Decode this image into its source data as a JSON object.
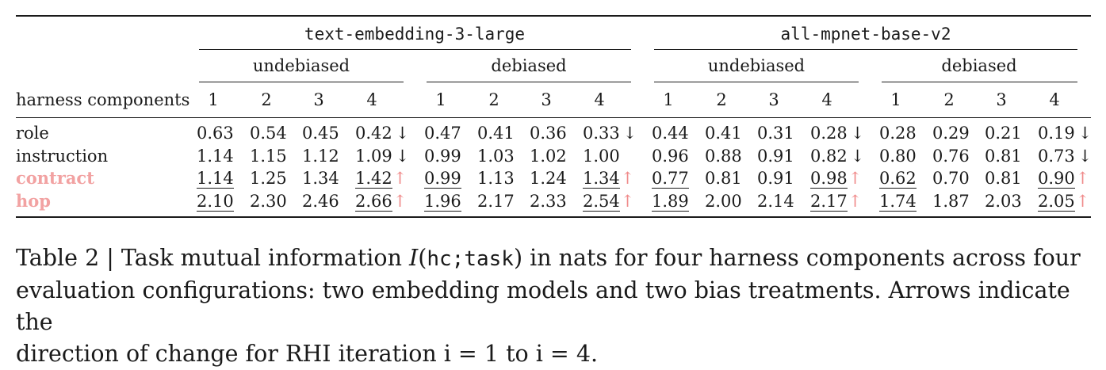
{
  "table": {
    "models": [
      "text-embedding-3-large",
      "all-mpnet-base-v2"
    ],
    "treatments": [
      "undebiased",
      "debiased",
      "undebiased",
      "debiased"
    ],
    "row_header": "harness components",
    "iterations": [
      "1",
      "2",
      "3",
      "4",
      "1",
      "2",
      "3",
      "4",
      "1",
      "2",
      "3",
      "4",
      "1",
      "2",
      "3",
      "4"
    ],
    "rows": [
      {
        "label": "role",
        "highlight": false,
        "values": [
          "0.63",
          "0.54",
          "0.45",
          "0.42",
          "0.47",
          "0.41",
          "0.36",
          "0.33",
          "0.44",
          "0.41",
          "0.31",
          "0.28",
          "0.28",
          "0.29",
          "0.21",
          "0.19"
        ],
        "underlined": [
          false,
          false,
          false,
          false,
          false,
          false,
          false,
          false,
          false,
          false,
          false,
          false,
          false,
          false,
          false,
          false
        ],
        "arrows": [
          "",
          "",
          "",
          "↓",
          "",
          "",
          "",
          "↓",
          "",
          "",
          "",
          "↓",
          "",
          "",
          "",
          "↓"
        ]
      },
      {
        "label": "instruction",
        "highlight": false,
        "values": [
          "1.14",
          "1.15",
          "1.12",
          "1.09",
          "0.99",
          "1.03",
          "1.02",
          "1.00",
          "0.96",
          "0.88",
          "0.91",
          "0.82",
          "0.80",
          "0.76",
          "0.81",
          "0.73"
        ],
        "underlined": [
          false,
          false,
          false,
          false,
          false,
          false,
          false,
          false,
          false,
          false,
          false,
          false,
          false,
          false,
          false,
          false
        ],
        "arrows": [
          "",
          "",
          "",
          "↓",
          "",
          "",
          "",
          "",
          "",
          "",
          "",
          "↓",
          "",
          "",
          "",
          "↓"
        ]
      },
      {
        "label": "contract",
        "highlight": true,
        "values": [
          "1.14",
          "1.25",
          "1.34",
          "1.42",
          "0.99",
          "1.13",
          "1.24",
          "1.34",
          "0.77",
          "0.81",
          "0.91",
          "0.98",
          "0.62",
          "0.70",
          "0.81",
          "0.90"
        ],
        "underlined": [
          true,
          false,
          false,
          true,
          true,
          false,
          false,
          true,
          true,
          false,
          false,
          true,
          true,
          false,
          false,
          true
        ],
        "arrows": [
          "",
          "",
          "",
          "↑",
          "",
          "",
          "",
          "↑",
          "",
          "",
          "",
          "↑",
          "",
          "",
          "",
          "↑"
        ]
      },
      {
        "label": "hop",
        "highlight": true,
        "values": [
          "2.10",
          "2.30",
          "2.46",
          "2.66",
          "1.96",
          "2.17",
          "2.33",
          "2.54",
          "1.89",
          "2.00",
          "2.14",
          "2.17",
          "1.74",
          "1.87",
          "2.03",
          "2.05"
        ],
        "underlined": [
          true,
          false,
          false,
          true,
          true,
          false,
          false,
          true,
          true,
          false,
          false,
          true,
          true,
          false,
          false,
          true
        ],
        "arrows": [
          "",
          "",
          "",
          "↑",
          "",
          "",
          "",
          "↑",
          "",
          "",
          "",
          "↑",
          "",
          "",
          "",
          "↑"
        ]
      }
    ]
  },
  "caption": {
    "prefix": "Table 2 | Task mutual information ",
    "mi_symbol": "I",
    "mi_open": "(",
    "mi_arg": "hc;task",
    "mi_close": ")",
    "line1_rest": " in nats for four harness components across four",
    "line2": "evaluation configurations: two embedding models and two bias treatments. Arrows indicate the",
    "line3": "direction of change for RHI iteration i = 1 to i = 4."
  },
  "colors": {
    "highlight": "#f2a2a2",
    "arrow_up": "#f08a8a",
    "text": "#1a1a1a"
  }
}
